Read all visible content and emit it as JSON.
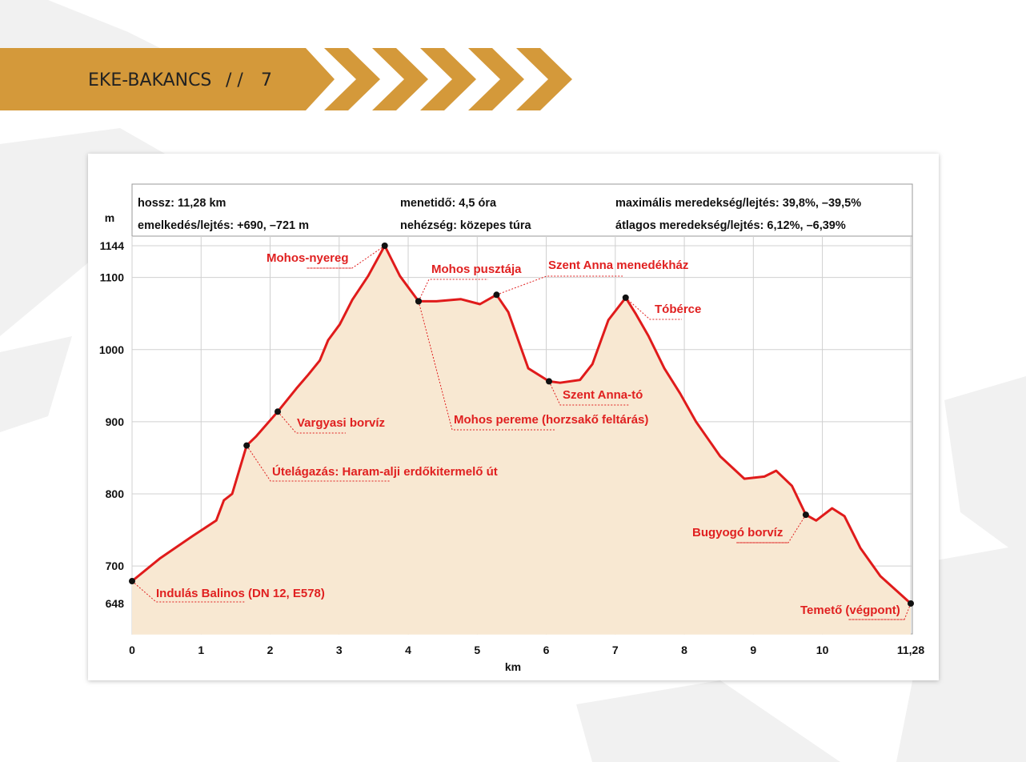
{
  "header": {
    "title": "EKE-BAKANCS",
    "separator": "/ /",
    "page": "7"
  },
  "chart_data": {
    "type": "line",
    "info": [
      "hossz: 11,28 km",
      "emelkedés/lejtés: +690, –721 m",
      "menetidő: 4,5 óra",
      "nehézség: közepes túra",
      "maximális meredekség/lejtés: 39,8%, –39,5%",
      "átlagos meredekség/lejtés: 6,12%, –6,39%"
    ],
    "y_label": "m",
    "x_label": "km",
    "x": [
      0,
      0.41,
      0.87,
      1.22,
      1.33,
      1.45,
      1.66,
      1.8,
      2.11,
      2.38,
      2.55,
      2.72,
      2.84,
      3.01,
      3.19,
      3.42,
      3.66,
      3.88,
      4.15,
      4.41,
      4.76,
      5.04,
      5.28,
      5.45,
      5.74,
      6.04,
      6.2,
      6.49,
      6.67,
      6.9,
      7.15,
      7.3,
      7.48,
      7.71,
      7.94,
      8.17,
      8.52,
      8.87,
      9.16,
      9.33,
      9.56,
      9.76,
      9.91,
      10.14,
      10.32,
      10.55,
      10.84,
      11.28
    ],
    "values": [
      679,
      711,
      741,
      763,
      791,
      800,
      867,
      880,
      914,
      946,
      965,
      985,
      1013,
      1035,
      1069,
      1102,
      1144,
      1102,
      1067,
      1067,
      1070,
      1063,
      1076,
      1052,
      974,
      956,
      954,
      958,
      980,
      1041,
      1072,
      1049,
      1019,
      974,
      939,
      900,
      852,
      821,
      824,
      832,
      811,
      771,
      763,
      780,
      769,
      725,
      686,
      648
    ],
    "color": "#e01b1b",
    "fill": "#f8e8d2",
    "points": [
      {
        "label": "Indulás Balinos (DN 12, E578)",
        "x": 0,
        "y": 679
      },
      {
        "label": "Útelágazás: Haram-alji erdőkitermelő út",
        "x": 1.66,
        "y": 867
      },
      {
        "label": "Vargyasi borvíz",
        "x": 2.11,
        "y": 914
      },
      {
        "label": "Mohos-nyereg",
        "x": 3.66,
        "y": 1144
      },
      {
        "label": "Mohos pusztája",
        "x": 4.15,
        "y": 1067
      },
      {
        "label": "Mohos pereme (horzsakő feltárás)",
        "x": 4.15,
        "y": 1067
      },
      {
        "label": "Szent Anna menedékház",
        "x": 5.28,
        "y": 1076
      },
      {
        "label": "Szent Anna-tó",
        "x": 6.04,
        "y": 956
      },
      {
        "label": "Tóbérce",
        "x": 7.15,
        "y": 1072
      },
      {
        "label": "Bugyogó borvíz",
        "x": 9.76,
        "y": 771
      },
      {
        "label": "Temető (végpont)",
        "x": 11.28,
        "y": 648
      }
    ],
    "xlim": [
      0,
      11.28
    ],
    "ylim": [
      605,
      1144
    ],
    "xticks": [
      0,
      1,
      2,
      3,
      4,
      5,
      6,
      7,
      8,
      9,
      10,
      {
        "value": 11.28,
        "label": "11,28"
      }
    ],
    "yticks": [
      648,
      700,
      800,
      900,
      1000,
      1100,
      1144
    ],
    "grid": true
  }
}
